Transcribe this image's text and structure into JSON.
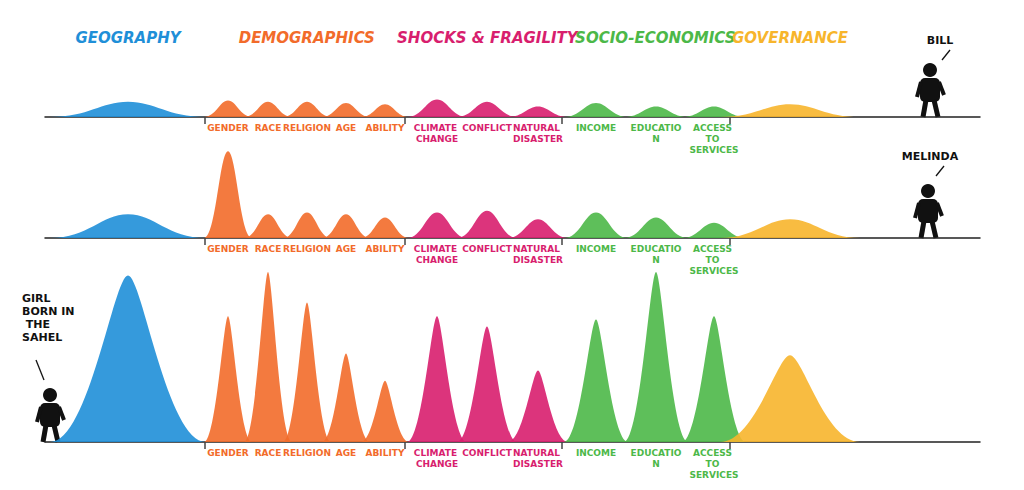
{
  "chart_data": {
    "type": "area",
    "tick_labels": "x",
    "ylim": [
      0,
      100
    ],
    "groups": [
      {
        "name": "GEOGRAPHY",
        "color": "#1f8fd8",
        "categories": [
          null
        ]
      },
      {
        "name": "DEMOGRAPHICS",
        "color": "#f26b2a",
        "categories": [
          "GENDER",
          "RACE",
          "RELIGION",
          "AGE",
          "ABILITY"
        ]
      },
      {
        "name": "SHOCKS & FRAGILITY",
        "color": "#d81e6e",
        "categories": [
          "CLIMATE CHANGE",
          "CONFLICT",
          "NATURAL DISASTER"
        ]
      },
      {
        "name": "SOCIO-ECONOMICS",
        "color": "#4cb848",
        "categories": [
          "INCOME",
          "EDUCATION",
          "ACCESS TO SERVICES"
        ]
      },
      {
        "name": "GOVERNANCE",
        "color": "#f7b52c",
        "categories": [
          null
        ]
      }
    ],
    "series": [
      {
        "name": "BILL",
        "values": [
          13,
          14,
          13,
          13,
          12,
          11,
          15,
          13,
          9,
          12,
          9,
          9,
          11
        ]
      },
      {
        "name": "MELINDA",
        "values": [
          14,
          51,
          14,
          15,
          14,
          12,
          15,
          16,
          11,
          15,
          12,
          9,
          11
        ]
      },
      {
        "name": "GIRL BORN IN THE SAHEL",
        "values": [
          98,
          74,
          100,
          82,
          52,
          36,
          74,
          68,
          42,
          72,
          100,
          74,
          51
        ]
      }
    ]
  }
}
